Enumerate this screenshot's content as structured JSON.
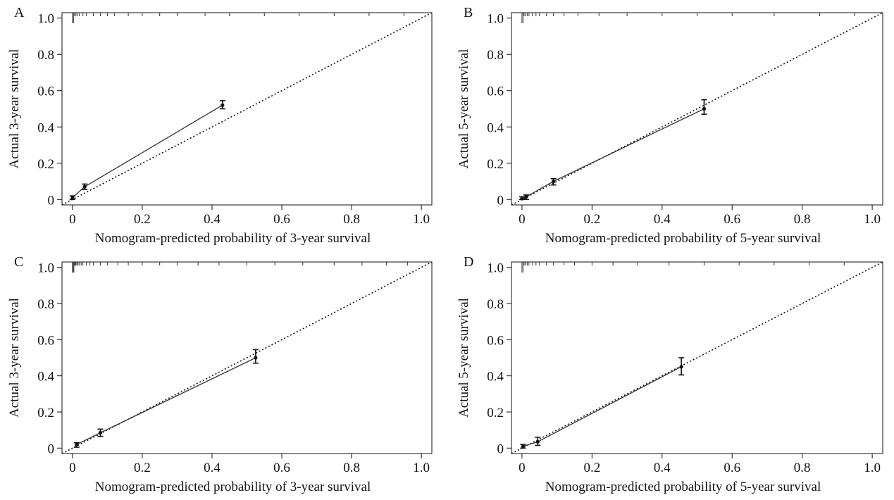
{
  "figure": {
    "panels": [
      "A",
      "B",
      "C",
      "D"
    ]
  },
  "chart_data": [
    {
      "panel": "A",
      "type": "line",
      "title": "",
      "xlabel": "Nomogram-predicted probability of 3-year survival",
      "ylabel": "Actual 3-year survival",
      "xlim": [
        -0.03,
        1.03
      ],
      "ylim": [
        -0.03,
        1.03
      ],
      "xticks": [
        0,
        0.2,
        0.4,
        0.6,
        0.8,
        1.0
      ],
      "xtick_labels": [
        "0",
        "0.2",
        "0.4",
        "0.6",
        "0.8",
        "1.0"
      ],
      "yticks": [
        0,
        0.2,
        0.4,
        0.6,
        0.8,
        1.0
      ],
      "ytick_labels": [
        "0",
        "0.2",
        "0.4",
        "0.6",
        "0.8",
        "1.0"
      ],
      "reference_line": "diagonal-dotted",
      "series": [
        {
          "x": [
            0.0,
            0.035,
            0.43
          ],
          "y": [
            0.01,
            0.07,
            0.52
          ],
          "err_low": [
            0.0,
            0.055,
            0.5
          ],
          "err_high": [
            0.02,
            0.085,
            0.545
          ]
        }
      ],
      "rug_x": [
        0.0,
        0.003,
        0.006,
        0.01,
        0.015,
        0.02,
        0.03,
        0.04,
        0.06,
        0.08,
        0.1,
        0.12,
        0.16,
        0.2,
        0.25,
        0.3,
        0.38,
        0.45,
        0.55,
        0.65,
        0.75,
        0.85,
        0.95
      ]
    },
    {
      "panel": "B",
      "type": "line",
      "title": "",
      "xlabel": "Nomogram-predicted probability of 5-year survival",
      "ylabel": "Actual 5-year survival",
      "xlim": [
        -0.03,
        1.03
      ],
      "ylim": [
        -0.03,
        1.03
      ],
      "xticks": [
        0,
        0.2,
        0.4,
        0.6,
        0.8,
        1.0
      ],
      "xtick_labels": [
        "0",
        "0.2",
        "0.4",
        "0.6",
        "0.8",
        "1.0"
      ],
      "yticks": [
        0,
        0.2,
        0.4,
        0.6,
        0.8,
        1.0
      ],
      "ytick_labels": [
        "0",
        "0.2",
        "0.4",
        "0.6",
        "0.8",
        "1.0"
      ],
      "reference_line": "diagonal-dotted",
      "series": [
        {
          "x": [
            0.0,
            0.012,
            0.09,
            0.52
          ],
          "y": [
            0.005,
            0.015,
            0.1,
            0.5
          ],
          "err_low": [
            0.0,
            0.0,
            0.08,
            0.47
          ],
          "err_high": [
            0.015,
            0.025,
            0.115,
            0.55
          ]
        }
      ],
      "rug_x": [
        0.0,
        0.003,
        0.006,
        0.01,
        0.015,
        0.02,
        0.03,
        0.04,
        0.05,
        0.07,
        0.09,
        0.12,
        0.16,
        0.22,
        0.3,
        0.4,
        0.5,
        0.6,
        0.72,
        0.85,
        0.95
      ]
    },
    {
      "panel": "C",
      "type": "line",
      "title": "",
      "xlabel": "Nomogram-predicted probability of 3-year survival",
      "ylabel": "Actual 3-year survival",
      "xlim": [
        -0.03,
        1.03
      ],
      "ylim": [
        -0.03,
        1.03
      ],
      "xticks": [
        0,
        0.2,
        0.4,
        0.6,
        0.8,
        1.0
      ],
      "xtick_labels": [
        "0",
        "0.2",
        "0.4",
        "0.6",
        "0.8",
        "1.0"
      ],
      "yticks": [
        0,
        0.2,
        0.4,
        0.6,
        0.8,
        1.0
      ],
      "ytick_labels": [
        "0",
        "0.2",
        "0.4",
        "0.6",
        "0.8",
        "1.0"
      ],
      "reference_line": "diagonal-dotted",
      "series": [
        {
          "x": [
            0.012,
            0.08,
            0.525
          ],
          "y": [
            0.02,
            0.085,
            0.5
          ],
          "err_low": [
            0.005,
            0.065,
            0.47
          ],
          "err_high": [
            0.03,
            0.105,
            0.545
          ]
        }
      ],
      "rug_x": [
        0.0,
        0.002,
        0.004,
        0.006,
        0.008,
        0.01,
        0.013,
        0.016,
        0.02,
        0.025,
        0.03,
        0.04,
        0.05,
        0.06,
        0.08,
        0.1,
        0.13,
        0.16,
        0.2,
        0.25,
        0.3,
        0.36,
        0.42,
        0.5,
        0.58,
        0.66,
        0.75,
        0.83,
        0.9,
        0.96
      ]
    },
    {
      "panel": "D",
      "type": "line",
      "title": "",
      "xlabel": "Nomogram-predicted probability of 5-year survival",
      "ylabel": "Actual 5-year survival",
      "xlim": [
        -0.03,
        1.03
      ],
      "ylim": [
        -0.03,
        1.03
      ],
      "xticks": [
        0,
        0.2,
        0.4,
        0.6,
        0.8,
        1.0
      ],
      "xtick_labels": [
        "0",
        "0.2",
        "0.4",
        "0.6",
        "0.8",
        "1.0"
      ],
      "yticks": [
        0,
        0.2,
        0.4,
        0.6,
        0.8,
        1.0
      ],
      "ytick_labels": [
        "0",
        "0.2",
        "0.4",
        "0.6",
        "0.8",
        "1.0"
      ],
      "reference_line": "diagonal-dotted",
      "series": [
        {
          "x": [
            0.003,
            0.045,
            0.455
          ],
          "y": [
            0.01,
            0.035,
            0.45
          ],
          "err_low": [
            0.0,
            0.015,
            0.405
          ],
          "err_high": [
            0.02,
            0.06,
            0.5
          ]
        }
      ],
      "rug_x": [
        0.0,
        0.003,
        0.006,
        0.01,
        0.015,
        0.02,
        0.03,
        0.04,
        0.05,
        0.07,
        0.09,
        0.12,
        0.15,
        0.2,
        0.26,
        0.33,
        0.42,
        0.52,
        0.62,
        0.72,
        0.82,
        0.92
      ]
    }
  ]
}
